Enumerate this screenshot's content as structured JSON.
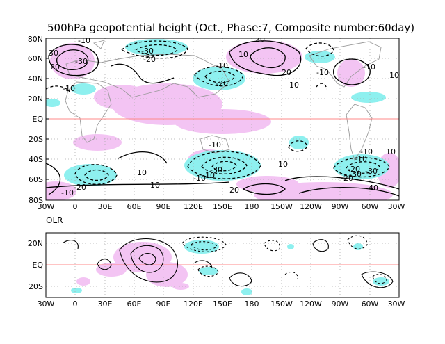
{
  "title": "500hPa geopotential height (Oct., Phase:7, Composite number:60day)",
  "olr_label": "OLR",
  "colors": {
    "positive_anomaly": "#f3c4f3",
    "negative_anomaly": "#8ef0ef",
    "equator_line": "#ff8888",
    "coast": "#999999"
  },
  "top_panel": {
    "lat_ticks": [
      "80N",
      "60N",
      "40N",
      "20N",
      "EQ",
      "20S",
      "40S",
      "60S",
      "80S"
    ],
    "lon_ticks": [
      "30W",
      "0",
      "30E",
      "60E",
      "90E",
      "120E",
      "150E",
      "180",
      "150W",
      "120W",
      "90W",
      "60W",
      "30W"
    ],
    "contour_labels": [
      "-10",
      "20",
      "-30",
      "30",
      "-10",
      "-30",
      "-20",
      "20",
      "10",
      "-20",
      "-10",
      "20",
      "-10",
      "10",
      "-10",
      "-20",
      "-10",
      "10",
      "-10",
      "-30",
      "-10",
      "-10",
      "20",
      "10",
      "-10",
      "-20",
      "-30",
      "10",
      "-30",
      "40",
      "-20",
      "-10",
      "10",
      "10"
    ]
  },
  "bottom_panel": {
    "lat_ticks": [
      "20N",
      "EQ",
      "20S"
    ],
    "lon_ticks": [
      "30W",
      "0",
      "30E",
      "60E",
      "90E",
      "120E",
      "150E",
      "180",
      "150W",
      "120W",
      "90W",
      "60W",
      "30W"
    ]
  }
}
